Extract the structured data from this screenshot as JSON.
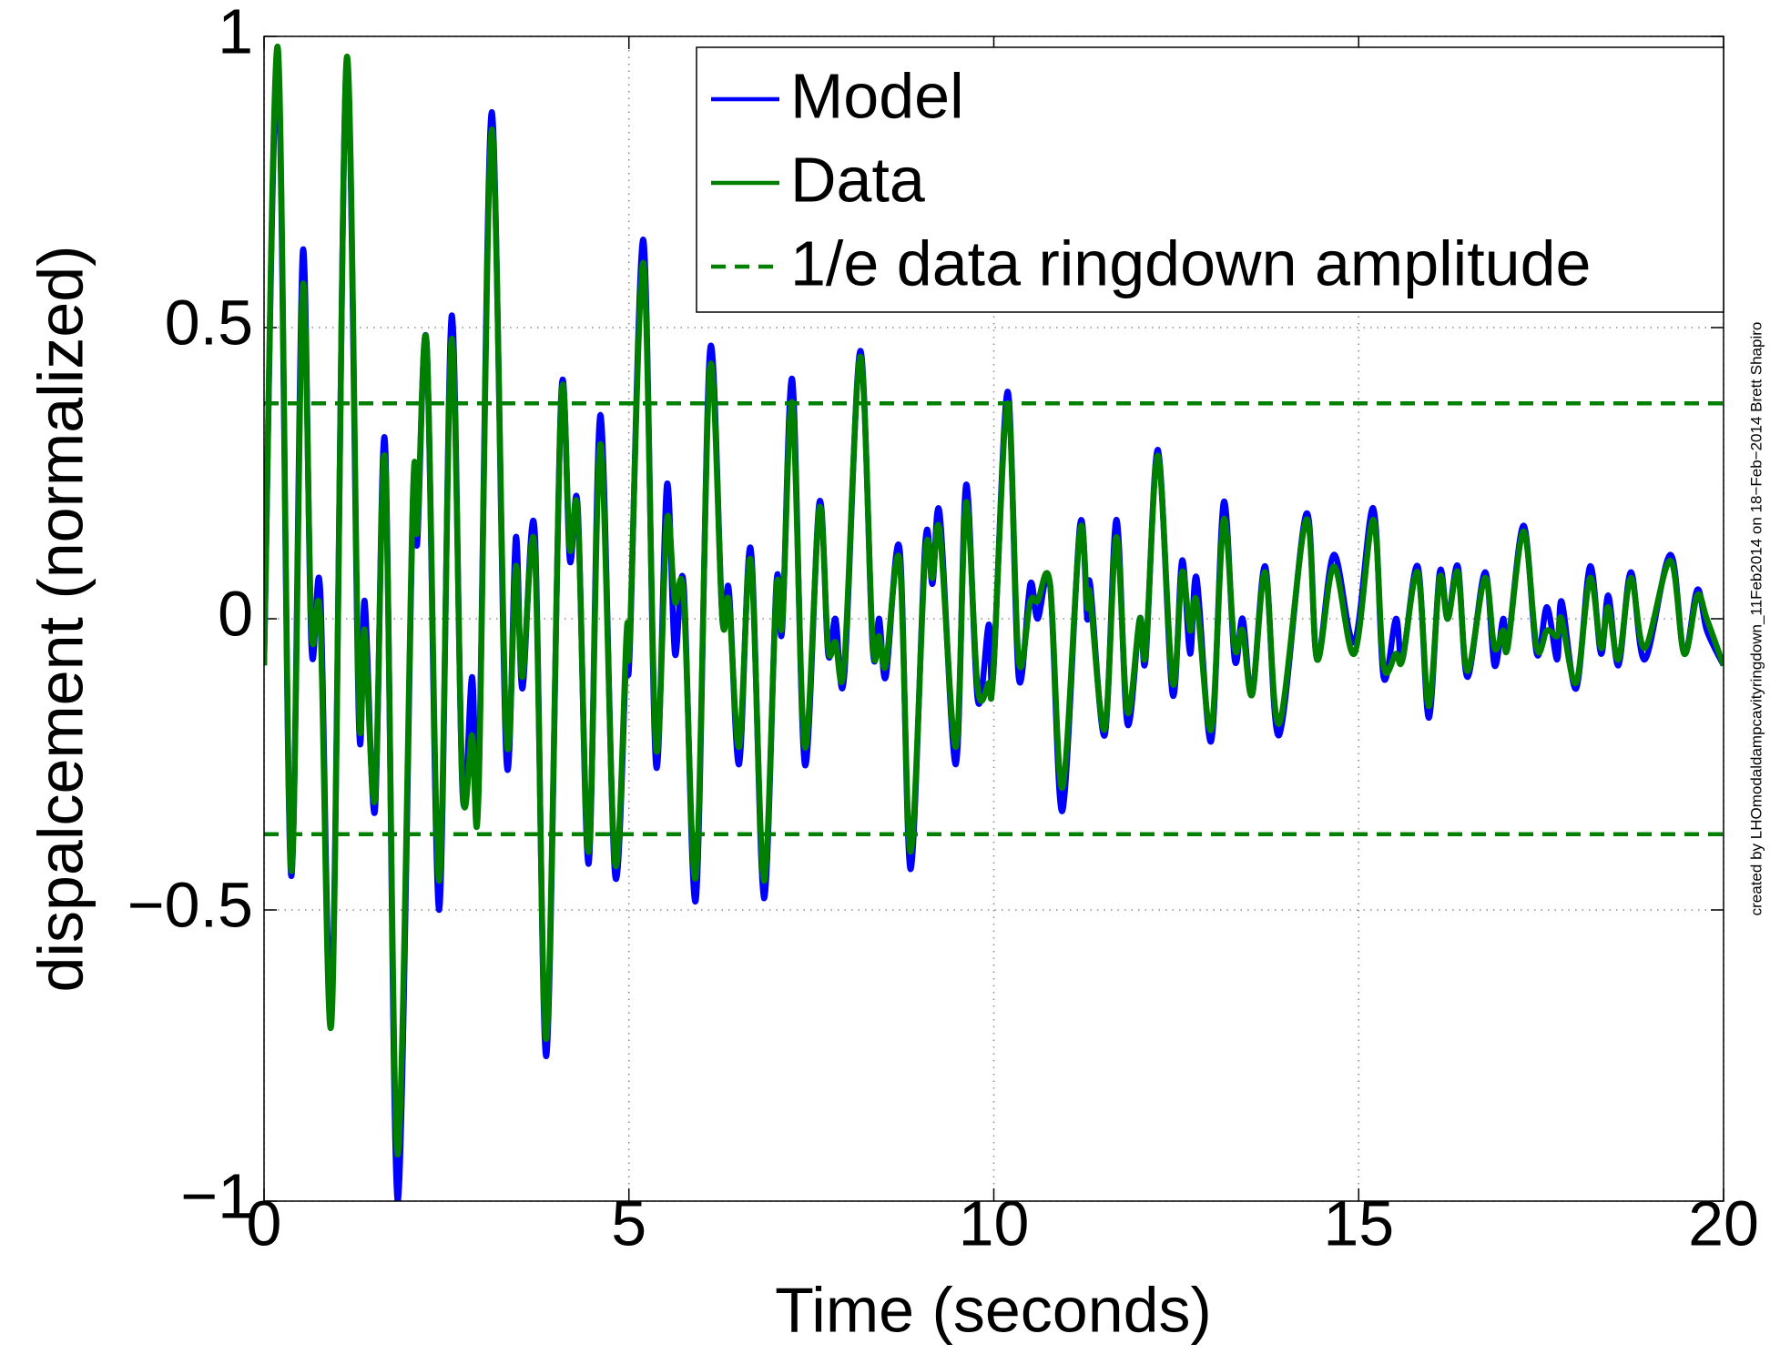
{
  "chart_data": {
    "type": "line",
    "xlabel": "Time (seconds)",
    "ylabel": "dispalcement (normalized)",
    "note": "created by LHOmodaldampcavityringdown_11Feb2014 on 18−Feb−2014 Brett Shapiro",
    "xlim": [
      0,
      20
    ],
    "ylim": [
      -1,
      1
    ],
    "xticks": [
      0,
      5,
      10,
      15,
      20
    ],
    "yticks": [
      {
        "value": -1,
        "label": "−1"
      },
      {
        "value": -0.5,
        "label": "−0.5"
      },
      0,
      0.5,
      1
    ],
    "grid": true,
    "legend": "top-right",
    "x": [
      0,
      0.19,
      0.37,
      0.53,
      0.65,
      0.77,
      0.93,
      1.13,
      1.3,
      1.38,
      1.52,
      1.66,
      1.83,
      2.04,
      2.1,
      2.23,
      2.4,
      2.57,
      2.72,
      2.85,
      2.94,
      3.12,
      3.32,
      3.45,
      3.54,
      3.71,
      3.87,
      4.07,
      4.19,
      4.3,
      4.45,
      4.61,
      4.81,
      4.97,
      5.01,
      5.2,
      5.37,
      5.52,
      5.63,
      5.75,
      5.92,
      6.11,
      6.28,
      6.37,
      6.51,
      6.67,
      6.85,
      7.02,
      7.1,
      7.24,
      7.41,
      7.61,
      7.73,
      7.83,
      7.95,
      8.17,
      8.34,
      8.43,
      8.52,
      8.71,
      8.86,
      9.06,
      9.16,
      9.26,
      9.48,
      9.62,
      9.78,
      9.93,
      9.99,
      10.19,
      10.34,
      10.5,
      10.6,
      10.77,
      10.94,
      11.18,
      11.28,
      11.32,
      11.52,
      11.68,
      11.83,
      12.0,
      12.08,
      12.25,
      12.45,
      12.58,
      12.69,
      12.78,
      12.98,
      13.15,
      13.3,
      13.41,
      13.54,
      13.72,
      13.91,
      14.28,
      14.43,
      14.66,
      14.94,
      15.2,
      15.34,
      15.51,
      15.6,
      15.81,
      15.96,
      16.11,
      16.22,
      16.36,
      16.49,
      16.73,
      16.86,
      16.98,
      17.04,
      17.26,
      17.44,
      17.58,
      17.72,
      17.78,
      17.98,
      18.17,
      18.32,
      18.42,
      18.56,
      18.73,
      18.92,
      19.27,
      19.46,
      19.64,
      19.77,
      20
    ],
    "series": [
      {
        "name": "Model",
        "color": "#0000ff",
        "values": [
          -0.08,
          0.95,
          -0.44,
          0.63,
          -0.05,
          0.05,
          -0.65,
          0.95,
          -0.18,
          0.03,
          -0.33,
          0.3,
          -1.0,
          0.2,
          0.13,
          0.47,
          -0.5,
          0.52,
          -0.3,
          -0.1,
          -0.28,
          0.87,
          -0.24,
          0.14,
          -0.12,
          0.15,
          -0.75,
          0.38,
          0.1,
          0.19,
          -0.42,
          0.35,
          -0.44,
          -0.04,
          -0.06,
          0.65,
          -0.25,
          0.23,
          -0.06,
          0.06,
          -0.48,
          0.46,
          0.0,
          0.05,
          -0.25,
          0.12,
          -0.48,
          0.06,
          -0.02,
          0.41,
          -0.25,
          0.2,
          -0.06,
          0.0,
          -0.1,
          0.46,
          -0.05,
          0.0,
          -0.1,
          0.12,
          -0.43,
          0.13,
          0.06,
          0.18,
          -0.25,
          0.23,
          -0.14,
          -0.01,
          -0.1,
          0.39,
          -0.1,
          0.06,
          0.0,
          0.06,
          -0.33,
          0.16,
          0.0,
          0.06,
          -0.2,
          0.17,
          -0.18,
          0.0,
          -0.07,
          0.29,
          -0.13,
          0.1,
          -0.06,
          0.07,
          -0.21,
          0.2,
          -0.07,
          0.0,
          -0.13,
          0.09,
          -0.2,
          0.18,
          -0.07,
          0.11,
          -0.04,
          0.19,
          -0.1,
          0.0,
          -0.07,
          0.09,
          -0.17,
          0.08,
          0.0,
          0.09,
          -0.1,
          0.08,
          -0.08,
          0.0,
          -0.05,
          0.16,
          -0.06,
          0.02,
          -0.07,
          0.03,
          -0.12,
          0.09,
          -0.06,
          0.04,
          -0.08,
          0.08,
          -0.07,
          0.11,
          -0.06,
          0.05,
          -0.02,
          -0.08
        ]
      },
      {
        "name": "Data",
        "color": "#008000",
        "values": [
          -0.08,
          0.98,
          -0.43,
          0.57,
          -0.02,
          0.0,
          -0.68,
          0.96,
          -0.15,
          -0.02,
          -0.31,
          0.27,
          -0.92,
          0.21,
          0.15,
          0.47,
          -0.45,
          0.48,
          -0.29,
          -0.2,
          -0.3,
          0.84,
          -0.2,
          0.09,
          -0.1,
          0.12,
          -0.72,
          0.37,
          0.12,
          0.18,
          -0.4,
          0.3,
          -0.42,
          -0.02,
          -0.04,
          0.61,
          -0.22,
          0.17,
          0.03,
          0.04,
          -0.44,
          0.43,
          0.0,
          0.03,
          -0.22,
          0.1,
          -0.45,
          0.05,
          -0.01,
          0.37,
          -0.22,
          0.19,
          -0.05,
          -0.04,
          -0.08,
          0.45,
          -0.04,
          -0.03,
          -0.08,
          0.1,
          -0.4,
          0.11,
          0.07,
          0.15,
          -0.22,
          0.2,
          -0.12,
          -0.11,
          -0.1,
          0.37,
          -0.07,
          0.03,
          0.03,
          0.06,
          -0.29,
          0.15,
          0.02,
          0.04,
          -0.19,
          0.14,
          -0.16,
          0.0,
          -0.06,
          0.28,
          -0.11,
          0.08,
          -0.02,
          0.03,
          -0.19,
          0.17,
          -0.05,
          -0.02,
          -0.13,
          0.08,
          -0.18,
          0.17,
          -0.07,
          0.09,
          -0.06,
          0.17,
          -0.08,
          -0.06,
          -0.07,
          0.08,
          -0.15,
          0.07,
          0.0,
          0.08,
          -0.09,
          0.07,
          -0.05,
          -0.02,
          -0.05,
          0.15,
          -0.05,
          -0.02,
          -0.03,
          0.0,
          -0.11,
          0.07,
          -0.05,
          0.02,
          -0.07,
          0.07,
          -0.05,
          0.1,
          -0.06,
          0.04,
          0.0,
          -0.08
        ]
      }
    ],
    "hlines": {
      "name": "1/e data ringdown amplitude",
      "color": "#008000",
      "dashed": true,
      "values": [
        0.37,
        -0.37
      ]
    }
  }
}
